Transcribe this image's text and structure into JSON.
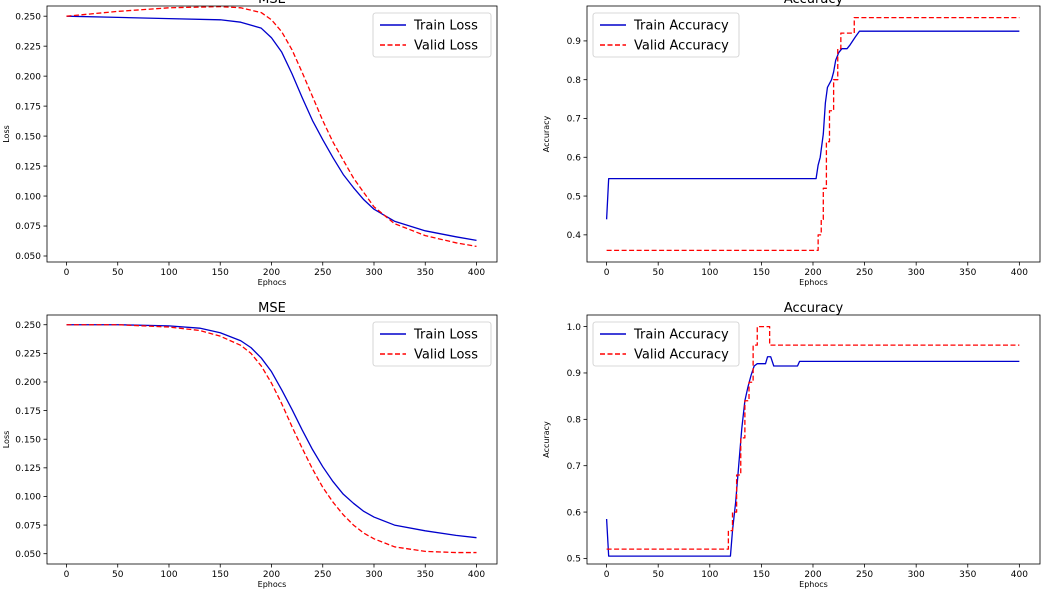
{
  "chart_data": [
    {
      "type": "line",
      "title": "MSE",
      "xlabel": "Ephocs",
      "ylabel": "Loss",
      "xlim": [
        -19,
        420
      ],
      "ylim": [
        0.045,
        0.2585
      ],
      "xticks": [
        0,
        50,
        100,
        150,
        200,
        250,
        300,
        350,
        400
      ],
      "yticks": [
        0.05,
        0.075,
        0.1,
        0.125,
        0.15,
        0.175,
        0.2,
        0.225,
        0.25
      ],
      "ytick_labels": [
        "0.050",
        "0.075",
        "0.100",
        "0.125",
        "0.150",
        "0.175",
        "0.200",
        "0.225",
        "0.250"
      ],
      "legend": "top-right",
      "grid": false,
      "series": [
        {
          "name": "Train Loss",
          "color": "#0000cc",
          "style": "solid",
          "x": [
            0,
            50,
            100,
            150,
            170,
            190,
            200,
            210,
            220,
            230,
            240,
            250,
            260,
            270,
            280,
            290,
            300,
            320,
            350,
            380,
            400
          ],
          "y": [
            0.25,
            0.249,
            0.248,
            0.247,
            0.245,
            0.24,
            0.232,
            0.22,
            0.202,
            0.182,
            0.163,
            0.147,
            0.132,
            0.118,
            0.107,
            0.097,
            0.089,
            0.079,
            0.071,
            0.066,
            0.063
          ]
        },
        {
          "name": "Valid Loss",
          "color": "#ff0000",
          "style": "dashed",
          "x": [
            0,
            50,
            100,
            150,
            170,
            190,
            200,
            210,
            220,
            230,
            240,
            250,
            260,
            270,
            280,
            290,
            300,
            320,
            350,
            380,
            400
          ],
          "y": [
            0.25,
            0.254,
            0.257,
            0.258,
            0.257,
            0.253,
            0.247,
            0.237,
            0.222,
            0.203,
            0.183,
            0.163,
            0.145,
            0.13,
            0.115,
            0.103,
            0.091,
            0.077,
            0.067,
            0.061,
            0.058
          ]
        }
      ]
    },
    {
      "type": "line",
      "title": "Accuracy",
      "xlabel": "Ephocs",
      "ylabel": "Accuracy",
      "xlim": [
        -19,
        420
      ],
      "ylim": [
        0.33,
        0.99
      ],
      "xticks": [
        0,
        50,
        100,
        150,
        200,
        250,
        300,
        350,
        400
      ],
      "yticks": [
        0.4,
        0.5,
        0.6,
        0.7,
        0.8,
        0.9
      ],
      "ytick_labels": [
        "0.4",
        "0.5",
        "0.6",
        "0.7",
        "0.8",
        "0.9"
      ],
      "legend": "top-left",
      "grid": false,
      "series": [
        {
          "name": "Train Accuracy",
          "color": "#0000cc",
          "style": "solid",
          "x": [
            0,
            2,
            203,
            205,
            207,
            210,
            212,
            214,
            218,
            220,
            222,
            225,
            228,
            233,
            236,
            241,
            245,
            400
          ],
          "y": [
            0.44,
            0.545,
            0.545,
            0.58,
            0.6,
            0.66,
            0.74,
            0.78,
            0.8,
            0.82,
            0.85,
            0.87,
            0.88,
            0.88,
            0.89,
            0.91,
            0.925,
            0.925
          ]
        },
        {
          "name": "Valid Accuracy",
          "color": "#ff0000",
          "style": "dashed",
          "x": [
            0,
            205,
            205,
            208,
            208,
            210,
            210,
            213,
            213,
            216,
            216,
            220,
            220,
            224,
            224,
            227,
            227,
            232,
            232,
            240,
            240,
            243,
            243,
            400
          ],
          "y": [
            0.36,
            0.36,
            0.4,
            0.4,
            0.44,
            0.44,
            0.52,
            0.52,
            0.64,
            0.64,
            0.72,
            0.72,
            0.8,
            0.8,
            0.88,
            0.88,
            0.92,
            0.92,
            0.92,
            0.92,
            0.96,
            0.96,
            0.96,
            0.96
          ]
        }
      ]
    },
    {
      "type": "line",
      "title": "MSE",
      "xlabel": "Ephocs",
      "ylabel": "Loss",
      "xlim": [
        -19,
        420
      ],
      "ylim": [
        0.041,
        0.2585
      ],
      "xticks": [
        0,
        50,
        100,
        150,
        200,
        250,
        300,
        350,
        400
      ],
      "yticks": [
        0.05,
        0.075,
        0.1,
        0.125,
        0.15,
        0.175,
        0.2,
        0.225,
        0.25
      ],
      "ytick_labels": [
        "0.050",
        "0.075",
        "0.100",
        "0.125",
        "0.150",
        "0.175",
        "0.200",
        "0.225",
        "0.250"
      ],
      "legend": "top-right",
      "grid": false,
      "series": [
        {
          "name": "Train Loss",
          "color": "#0000cc",
          "style": "solid",
          "x": [
            0,
            50,
            100,
            130,
            150,
            170,
            180,
            190,
            200,
            210,
            220,
            230,
            240,
            250,
            260,
            270,
            280,
            290,
            300,
            320,
            350,
            380,
            400
          ],
          "y": [
            0.25,
            0.25,
            0.249,
            0.247,
            0.243,
            0.236,
            0.23,
            0.221,
            0.209,
            0.193,
            0.176,
            0.158,
            0.141,
            0.126,
            0.113,
            0.102,
            0.094,
            0.087,
            0.082,
            0.075,
            0.07,
            0.066,
            0.064
          ]
        },
        {
          "name": "Valid Loss",
          "color": "#ff0000",
          "style": "dashed",
          "x": [
            0,
            50,
            100,
            130,
            150,
            170,
            180,
            190,
            200,
            210,
            220,
            230,
            240,
            250,
            260,
            270,
            280,
            290,
            300,
            320,
            350,
            380,
            400
          ],
          "y": [
            0.25,
            0.25,
            0.248,
            0.245,
            0.24,
            0.232,
            0.225,
            0.214,
            0.199,
            0.181,
            0.161,
            0.142,
            0.124,
            0.108,
            0.095,
            0.084,
            0.075,
            0.068,
            0.063,
            0.056,
            0.052,
            0.051,
            0.051
          ]
        }
      ]
    },
    {
      "type": "line",
      "title": "Accuracy",
      "xlabel": "Ephocs",
      "ylabel": "Accuracy",
      "xlim": [
        -19,
        420
      ],
      "ylim": [
        0.488,
        1.025
      ],
      "xticks": [
        0,
        50,
        100,
        150,
        200,
        250,
        300,
        350,
        400
      ],
      "yticks": [
        0.5,
        0.6,
        0.7,
        0.8,
        0.9,
        1.0
      ],
      "ytick_labels": [
        "0.5",
        "0.6",
        "0.7",
        "0.8",
        "0.9",
        "1.0"
      ],
      "legend": "top-left",
      "grid": false,
      "series": [
        {
          "name": "Train Accuracy",
          "color": "#0000cc",
          "style": "solid",
          "x": [
            0,
            2,
            120,
            122,
            125,
            128,
            131,
            134,
            137,
            140,
            143,
            146,
            150,
            154,
            156,
            159,
            162,
            185,
            187,
            400
          ],
          "y": [
            0.585,
            0.505,
            0.505,
            0.56,
            0.62,
            0.7,
            0.78,
            0.84,
            0.87,
            0.895,
            0.915,
            0.92,
            0.92,
            0.92,
            0.935,
            0.935,
            0.915,
            0.915,
            0.925,
            0.925
          ]
        },
        {
          "name": "Valid Accuracy",
          "color": "#ff0000",
          "style": "dashed",
          "x": [
            0,
            118,
            118,
            122,
            122,
            126,
            126,
            130,
            130,
            134,
            134,
            138,
            138,
            142,
            142,
            146,
            146,
            155,
            155,
            158,
            158,
            400
          ],
          "y": [
            0.52,
            0.52,
            0.56,
            0.56,
            0.6,
            0.6,
            0.68,
            0.68,
            0.76,
            0.76,
            0.84,
            0.84,
            0.88,
            0.88,
            0.96,
            0.96,
            1.0,
            1.0,
            1.0,
            1.0,
            0.96,
            0.96
          ]
        }
      ]
    }
  ]
}
